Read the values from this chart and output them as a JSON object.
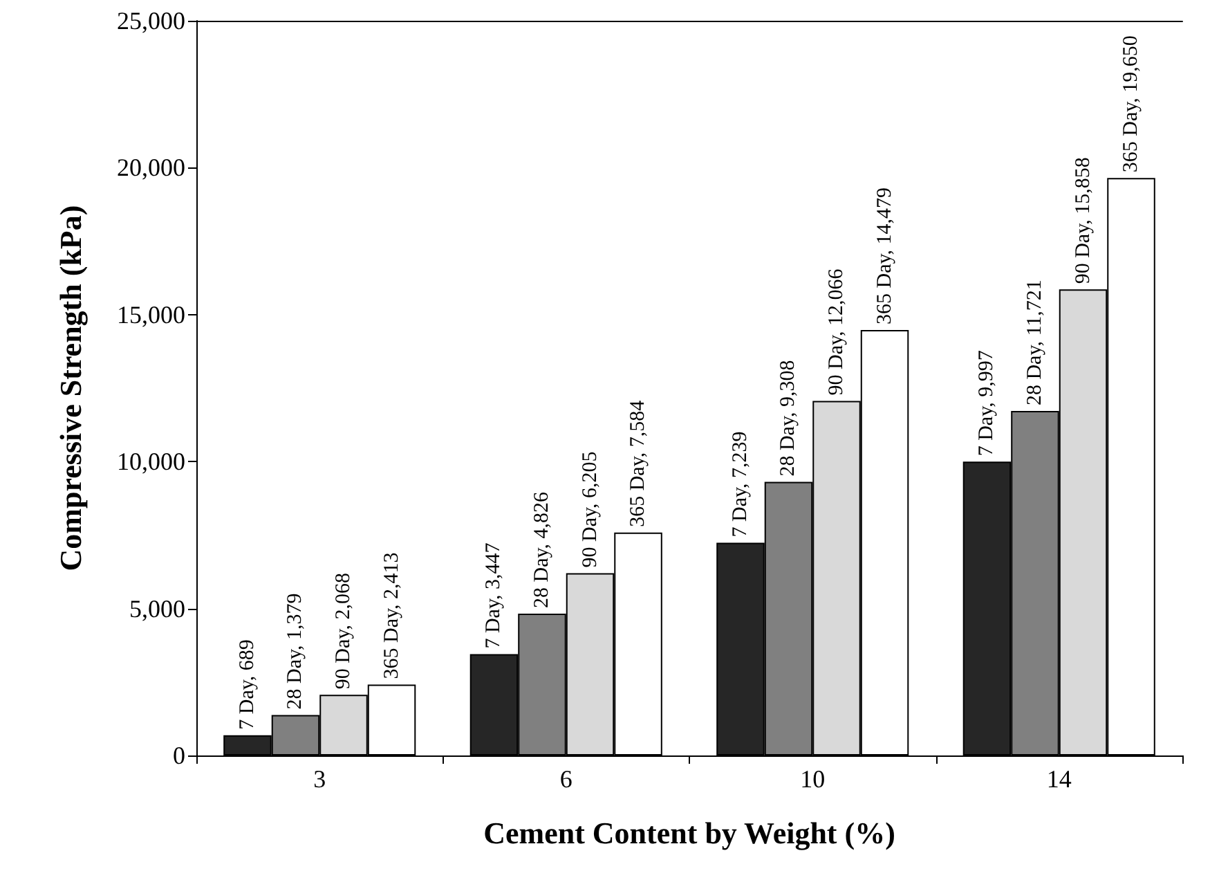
{
  "chart_data": {
    "type": "bar",
    "xlabel": "Cement Content by Weight (%)",
    "ylabel": "Compressive Strength (kPa)",
    "categories": [
      "3",
      "6",
      "10",
      "14"
    ],
    "series": [
      {
        "color": "#262626",
        "values": [
          689,
          3447,
          7239,
          9997
        ],
        "value_labels": [
          "7 Day, 689",
          "7 Day, 3,447",
          "7 Day, 7,239",
          "7 Day, 9,997"
        ]
      },
      {
        "color": "#808080",
        "values": [
          1379,
          4826,
          9308,
          11721
        ],
        "value_labels": [
          "28 Day, 1,379",
          "28 Day, 4,826",
          "28 Day, 9,308",
          "28 Day, 11,721"
        ]
      },
      {
        "color": "#d9d9d9",
        "values": [
          2068,
          6205,
          12066,
          15858
        ],
        "value_labels": [
          "90 Day, 2,068",
          "90 Day, 6,205",
          "90 Day, 12,066",
          "90 Day, 15,858"
        ]
      },
      {
        "color": "#ffffff",
        "values": [
          2413,
          7584,
          14479,
          19650
        ],
        "value_labels": [
          "365 Day, 2,413",
          "365 Day, 7,584",
          "365 Day, 14,479",
          "365 Day, 19,650"
        ]
      }
    ],
    "ylim": [
      0,
      25000
    ],
    "yticks": [
      {
        "value": 0,
        "label": "0"
      },
      {
        "value": 5000,
        "label": "5,000"
      },
      {
        "value": 10000,
        "label": "10,000"
      },
      {
        "value": 15000,
        "label": "15,000"
      },
      {
        "value": 20000,
        "label": "20,000"
      },
      {
        "value": 25000,
        "label": "25,000"
      }
    ],
    "grid": false
  }
}
